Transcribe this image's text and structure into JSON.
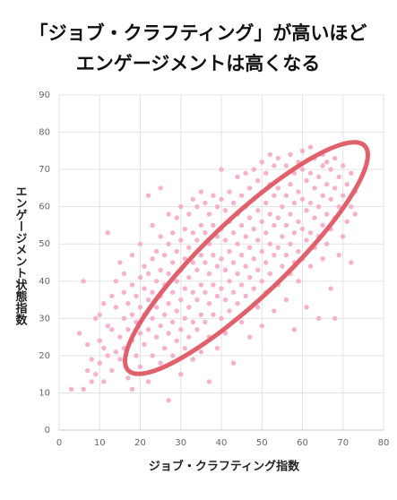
{
  "chart_data": {
    "type": "scatter",
    "title": "「ジョブ・クラフティング」が高いほど",
    "subtitle": "エンゲージメントは高くなる",
    "x_label": "ジョブ・クラフティング指数",
    "y_label": "エンゲージメント状態指数",
    "color": "#f7a9c6",
    "grid": true,
    "xlim": [
      0,
      80
    ],
    "ylim": [
      0,
      90
    ],
    "xticks": [
      0,
      10,
      20,
      30,
      40,
      50,
      60,
      70,
      80
    ],
    "yticks": [
      0,
      10,
      20,
      30,
      40,
      50,
      60,
      70,
      80,
      90
    ],
    "x": [
      3,
      5,
      6,
      6,
      7,
      7,
      8,
      8,
      9,
      9,
      10,
      10,
      10,
      11,
      11,
      11,
      12,
      12,
      12,
      13,
      13,
      13,
      14,
      14,
      14,
      15,
      15,
      15,
      16,
      16,
      16,
      16,
      17,
      17,
      17,
      18,
      18,
      18,
      18,
      18,
      19,
      19,
      19,
      20,
      20,
      20,
      20,
      20,
      21,
      21,
      21,
      21,
      22,
      22,
      22,
      22,
      22,
      23,
      23,
      23,
      23,
      23,
      24,
      24,
      24,
      24,
      25,
      25,
      25,
      25,
      25,
      25,
      26,
      26,
      26,
      26,
      27,
      27,
      27,
      27,
      27,
      27,
      28,
      28,
      28,
      28,
      28,
      29,
      29,
      29,
      29,
      29,
      30,
      30,
      30,
      30,
      30,
      30,
      31,
      31,
      31,
      31,
      31,
      32,
      32,
      32,
      32,
      32,
      33,
      33,
      33,
      33,
      33,
      33,
      34,
      34,
      34,
      34,
      34,
      35,
      35,
      35,
      35,
      35,
      35,
      36,
      36,
      36,
      36,
      36,
      37,
      37,
      37,
      37,
      37,
      37,
      38,
      38,
      38,
      38,
      38,
      39,
      39,
      39,
      39,
      39,
      40,
      40,
      40,
      40,
      40,
      40,
      41,
      41,
      41,
      41,
      41,
      42,
      42,
      42,
      42,
      42,
      43,
      43,
      43,
      43,
      43,
      44,
      44,
      44,
      44,
      44,
      45,
      45,
      45,
      45,
      45,
      46,
      46,
      46,
      46,
      46,
      47,
      47,
      47,
      47,
      47,
      48,
      48,
      48,
      48,
      48,
      49,
      49,
      49,
      49,
      49,
      50,
      50,
      50,
      50,
      50,
      50,
      51,
      51,
      51,
      51,
      51,
      52,
      52,
      52,
      52,
      52,
      53,
      53,
      53,
      53,
      53,
      54,
      54,
      54,
      54,
      54,
      55,
      55,
      55,
      55,
      56,
      56,
      56,
      56,
      56,
      57,
      57,
      57,
      57,
      57,
      58,
      58,
      58,
      58,
      58,
      59,
      59,
      59,
      59,
      59,
      60,
      60,
      60,
      60,
      60,
      61,
      61,
      61,
      61,
      62,
      62,
      62,
      62,
      62,
      63,
      63,
      63,
      63,
      64,
      64,
      64,
      64,
      65,
      65,
      65,
      65,
      65,
      66,
      66,
      66,
      66,
      67,
      67,
      67,
      67,
      68,
      68,
      68,
      68,
      69,
      69,
      69,
      70,
      70,
      70,
      71,
      71,
      72,
      72,
      72,
      73,
      73
    ],
    "y": [
      11,
      26,
      11,
      40,
      16,
      23,
      13,
      19,
      15,
      30,
      18,
      24,
      31,
      13,
      22,
      34,
      20,
      28,
      53,
      16,
      27,
      36,
      21,
      33,
      40,
      19,
      25,
      45,
      22,
      30,
      37,
      42,
      14,
      27,
      34,
      11,
      24,
      31,
      39,
      47,
      20,
      29,
      36,
      17,
      26,
      33,
      41,
      50,
      23,
      31,
      38,
      44,
      13,
      27,
      35,
      42,
      63,
      20,
      30,
      37,
      46,
      55,
      25,
      33,
      40,
      48,
      18,
      28,
      36,
      43,
      52,
      65,
      22,
      31,
      39,
      47,
      8,
      26,
      34,
      42,
      50,
      58,
      20,
      29,
      37,
      45,
      53,
      24,
      32,
      40,
      48,
      57,
      15,
      27,
      35,
      43,
      51,
      60,
      22,
      30,
      38,
      46,
      54,
      25,
      33,
      41,
      49,
      58,
      19,
      29,
      37,
      45,
      53,
      62,
      27,
      35,
      43,
      51,
      60,
      21,
      31,
      39,
      47,
      55,
      64,
      29,
      37,
      45,
      53,
      61,
      13,
      25,
      34,
      42,
      50,
      58,
      31,
      39,
      47,
      55,
      63,
      22,
      36,
      44,
      52,
      60,
      30,
      38,
      46,
      54,
      62,
      70,
      26,
      35,
      43,
      51,
      59,
      32,
      40,
      48,
      56,
      64,
      18,
      37,
      45,
      53,
      61,
      34,
      42,
      50,
      58,
      68,
      29,
      39,
      47,
      55,
      63,
      36,
      44,
      52,
      60,
      69,
      25,
      41,
      49,
      57,
      65,
      38,
      46,
      54,
      62,
      70,
      33,
      43,
      51,
      59,
      67,
      28,
      40,
      48,
      56,
      64,
      72,
      37,
      45,
      53,
      61,
      69,
      42,
      50,
      58,
      66,
      74,
      32,
      47,
      55,
      63,
      71,
      39,
      49,
      57,
      65,
      73,
      44,
      52,
      60,
      68,
      35,
      47,
      55,
      63,
      71,
      42,
      50,
      58,
      66,
      74,
      27,
      45,
      53,
      61,
      69,
      40,
      48,
      56,
      64,
      72,
      46,
      54,
      62,
      70,
      75,
      33,
      51,
      59,
      67,
      44,
      53,
      61,
      69,
      76,
      49,
      57,
      65,
      73,
      30,
      52,
      60,
      68,
      46,
      55,
      63,
      71,
      74,
      50,
      58,
      66,
      72,
      38,
      54,
      62,
      70,
      30,
      57,
      65,
      73,
      47,
      60,
      68,
      52,
      63,
      71,
      56,
      66,
      45,
      60,
      69,
      58,
      64
    ]
  }
}
